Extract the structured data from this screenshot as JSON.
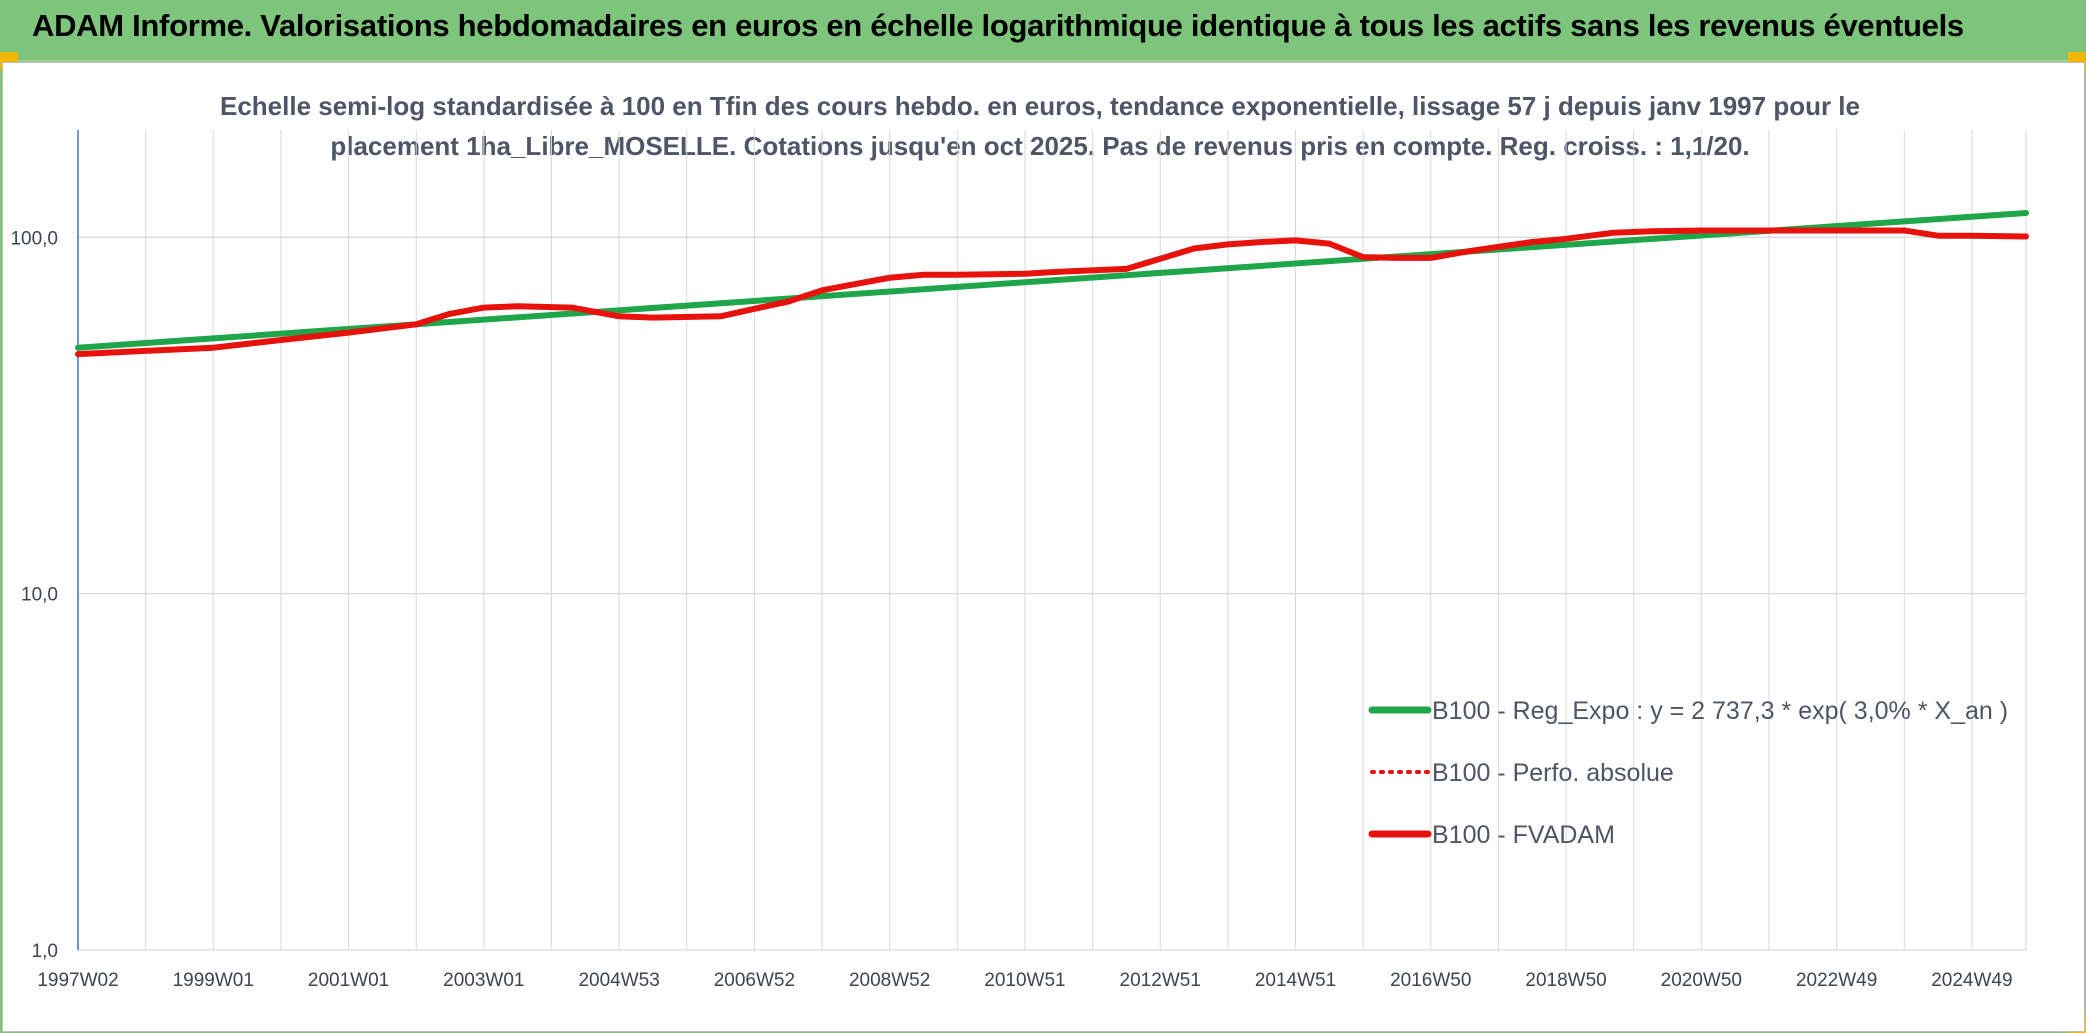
{
  "header": {
    "title": "ADAM Informe. Valorisations hebdomadaires en euros en échelle logarithmique identique à tous les actifs sans les revenus éventuels"
  },
  "colors": {
    "header_bg": "#7cc57a",
    "trend_line": "#1fa64a",
    "perf_line": "#e8120c",
    "fvadam_line": "#e8120c",
    "grid": "#d9d9d9",
    "axis": "#4472c4"
  },
  "chart_data": {
    "type": "line",
    "title_lines": [
      "Echelle semi-log standardisée à 100 en Tfin des cours hebdo. en euros, tendance exponentielle, lissage 57 j depuis janv 1997 pour le",
      "placement 1ha_Libre_MOSELLE. Cotations jusqu'en oct 2025. Pas de revenus pris en compte. Reg. croiss. : 1,1/20."
    ],
    "y_scale": "log",
    "ylim": [
      1,
      200
    ],
    "y_ticks": [
      {
        "value": 1,
        "label": "1,0"
      },
      {
        "value": 10,
        "label": "10,0"
      },
      {
        "value": 100,
        "label": "100,0"
      }
    ],
    "x_range": [
      1997.0,
      2025.8
    ],
    "x_ticks": [
      {
        "value": 1997.0,
        "label": "1997W02"
      },
      {
        "value": 1999.0,
        "label": "1999W01"
      },
      {
        "value": 2001.0,
        "label": "2001W01"
      },
      {
        "value": 2003.0,
        "label": "2003W01"
      },
      {
        "value": 2005.0,
        "label": "2004W53"
      },
      {
        "value": 2007.0,
        "label": "2006W52"
      },
      {
        "value": 2009.0,
        "label": "2008W52"
      },
      {
        "value": 2011.0,
        "label": "2010W51"
      },
      {
        "value": 2013.0,
        "label": "2012W51"
      },
      {
        "value": 2015.0,
        "label": "2014W51"
      },
      {
        "value": 2017.0,
        "label": "2016W50"
      },
      {
        "value": 2019.0,
        "label": "2018W50"
      },
      {
        "value": 2021.0,
        "label": "2020W50"
      },
      {
        "value": 2023.0,
        "label": "2022W49"
      },
      {
        "value": 2025.0,
        "label": "2024W49"
      }
    ],
    "minor_gridlines_x": [
      1998.0,
      2000.0,
      2002.0,
      2004.0,
      2006.0,
      2008.0,
      2010.0,
      2012.0,
      2014.0,
      2016.0,
      2018.0,
      2020.0,
      2022.0,
      2024.0
    ],
    "legend_position": "right",
    "series": [
      {
        "name": "B100 - Reg_Expo : y = 2 737,3 * exp( 3,0% *  X_an )",
        "style": "solid-thick",
        "color": "#1fa64a",
        "x": [
          1997.0,
          2025.8
        ],
        "values": [
          49.0,
          117.0
        ]
      },
      {
        "name": "B100 - Perfo. absolue",
        "style": "dotted",
        "color": "#e8120c",
        "x": [],
        "values": []
      },
      {
        "name": "B100 - FVADAM",
        "style": "solid-thick",
        "color": "#e8120c",
        "x": [
          1997.0,
          1998.0,
          1999.0,
          2000.0,
          2001.0,
          2002.0,
          2002.5,
          2003.0,
          2003.5,
          2004.3,
          2005.0,
          2005.5,
          2006.5,
          2007.0,
          2007.5,
          2008.0,
          2008.5,
          2009.0,
          2009.5,
          2010.0,
          2011.0,
          2011.5,
          2012.5,
          2013.0,
          2013.5,
          2014.0,
          2014.5,
          2015.0,
          2015.5,
          2016.0,
          2016.5,
          2017.0,
          2017.5,
          2018.0,
          2018.5,
          2019.0,
          2019.7,
          2020.3,
          2021.0,
          2022.0,
          2023.0,
          2024.0,
          2024.5,
          2025.0,
          2025.8
        ],
        "values": [
          47.0,
          48.0,
          49.0,
          51.5,
          54.0,
          57.0,
          61.0,
          63.5,
          64.0,
          63.5,
          60.0,
          59.5,
          60.0,
          63.0,
          66.0,
          71.0,
          74.0,
          77.0,
          78.5,
          78.5,
          79.0,
          80.0,
          81.5,
          87.0,
          93.0,
          95.5,
          97.0,
          98.0,
          96.0,
          88.0,
          87.5,
          87.5,
          91.0,
          94.0,
          97.0,
          99.0,
          103.0,
          104.0,
          104.5,
          104.5,
          104.5,
          104.5,
          101.0,
          101.0,
          100.5
        ]
      }
    ]
  }
}
